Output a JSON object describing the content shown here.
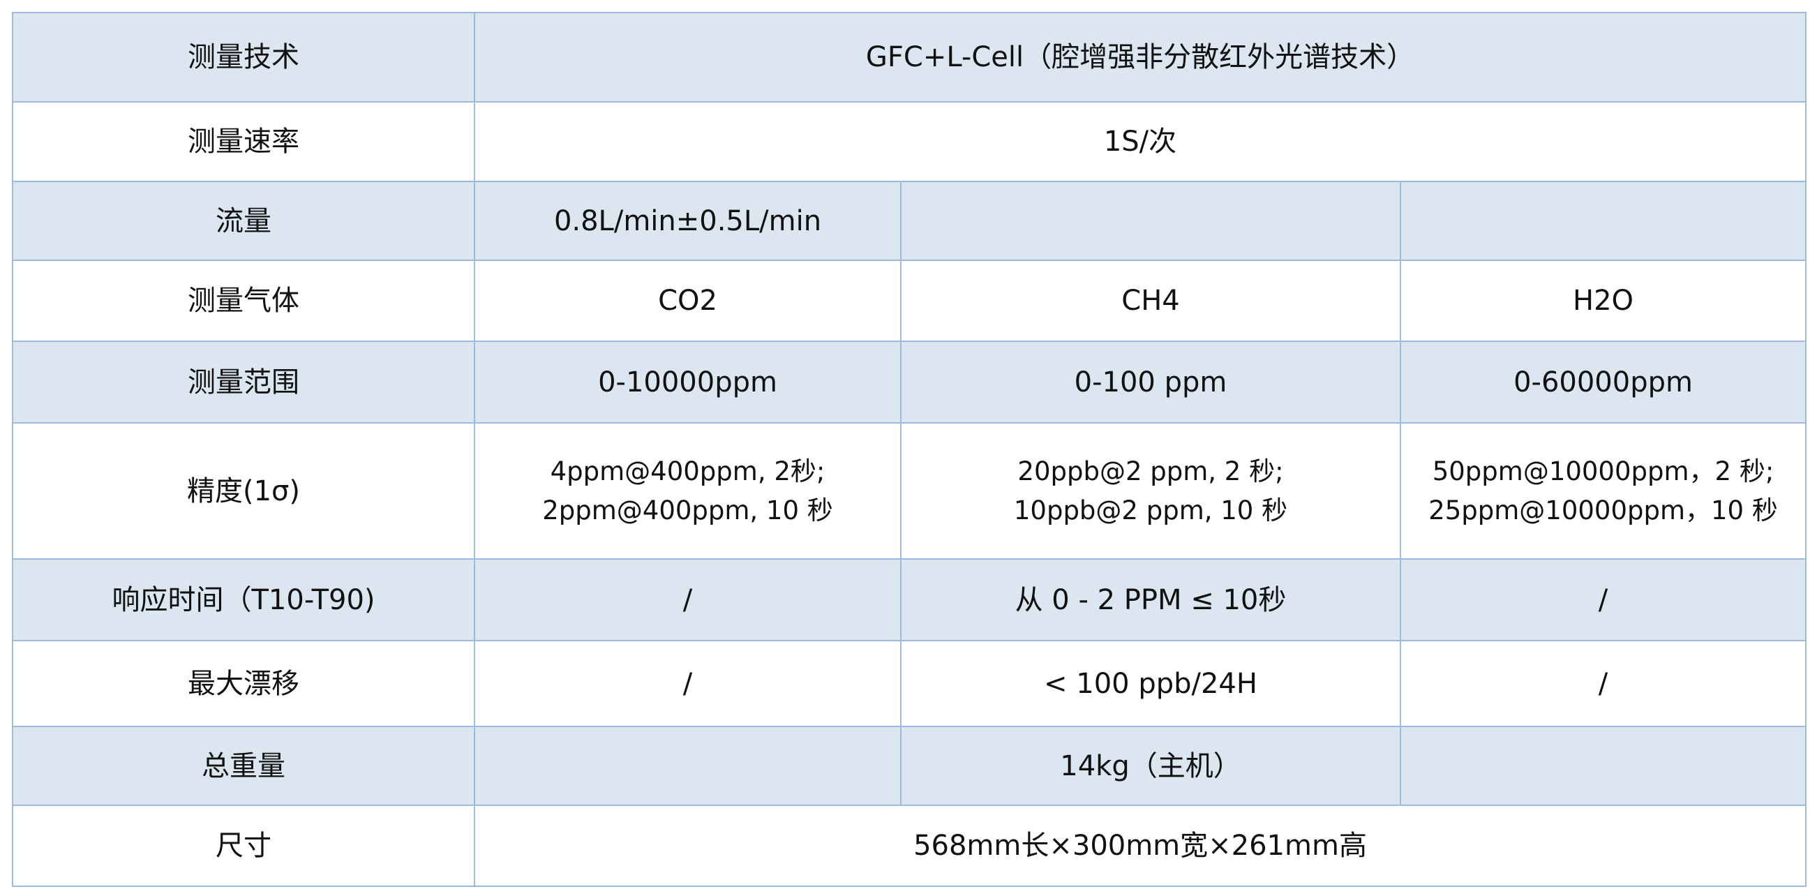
{
  "table": {
    "rows": [
      {
        "label": "测量技术",
        "value": "GFC+L-Cell（腔增强非分散红外光谱技术）"
      },
      {
        "label": "测量速率",
        "value": "1S/次"
      },
      {
        "label": "流量",
        "co2": "0.8L/min±0.5L/min",
        "ch4": "",
        "h2o": ""
      },
      {
        "label": "测量气体",
        "co2": "CO2",
        "ch4": "CH4",
        "h2o": "H2O"
      },
      {
        "label": "测量范围",
        "co2": "0-10000ppm",
        "ch4": "0-100 ppm",
        "h2o": "0-60000ppm"
      },
      {
        "label": "精度(1σ)",
        "co2": [
          "4ppm@400ppm, 2秒;",
          "2ppm@400ppm, 10 秒"
        ],
        "ch4": [
          "20ppb@2 ppm, 2 秒;",
          "10ppb@2 ppm, 10 秒"
        ],
        "h2o": [
          "50ppm@10000ppm，2 秒;",
          "25ppm@10000ppm，10 秒"
        ]
      },
      {
        "label": "响应时间（T10-T90)",
        "co2": "/",
        "ch4": "从 0 - 2 PPM ≤ 10秒",
        "h2o": "/"
      },
      {
        "label": "最大漂移",
        "co2": "/",
        "ch4": "< 100 ppb/24H",
        "h2o": "/"
      },
      {
        "label": "总重量",
        "co2": "",
        "ch4": "14kg（主机）",
        "h2o": ""
      },
      {
        "label": "尺寸",
        "value": "568mm长×300mm宽×261mm高"
      }
    ]
  },
  "colors": {
    "stripe": "#dce6f1",
    "border": "#9dbbe0"
  }
}
